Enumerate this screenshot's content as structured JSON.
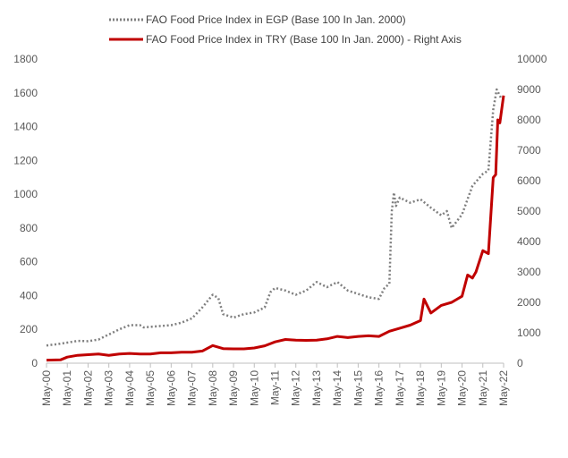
{
  "chart_data": {
    "type": "line",
    "title": "",
    "grid": false,
    "legend_position": "top",
    "x_ticks": [
      "May-00",
      "May-01",
      "May-02",
      "May-03",
      "May-04",
      "May-05",
      "May-06",
      "May-07",
      "May-08",
      "May-09",
      "May-10",
      "May-11",
      "May-12",
      "May-13",
      "May-14",
      "May-15",
      "May-16",
      "May-17",
      "May-18",
      "May-19",
      "May-20",
      "May-21",
      "May-22"
    ],
    "x_range": [
      2000.33,
      2022.33
    ],
    "y_left": {
      "min": 0,
      "max": 1800,
      "ticks": [
        0,
        200,
        400,
        600,
        800,
        1000,
        1200,
        1400,
        1600,
        1800
      ]
    },
    "y_right": {
      "min": 0,
      "max": 10000,
      "ticks": [
        0,
        1000,
        2000,
        3000,
        4000,
        5000,
        6000,
        7000,
        8000,
        9000,
        10000
      ]
    },
    "series": [
      {
        "name": "FAO Food Price Index in EGP (Base 100 In Jan. 2000)",
        "axis": "left",
        "color": "#7f7f7f",
        "style": "dotted",
        "points": [
          [
            2000.33,
            105
          ],
          [
            2000.83,
            112
          ],
          [
            2001.33,
            122
          ],
          [
            2001.83,
            132
          ],
          [
            2002.33,
            130
          ],
          [
            2002.83,
            140
          ],
          [
            2003.33,
            170
          ],
          [
            2003.83,
            200
          ],
          [
            2004.33,
            225
          ],
          [
            2004.83,
            225
          ],
          [
            2005.0,
            212
          ],
          [
            2005.33,
            215
          ],
          [
            2005.83,
            220
          ],
          [
            2006.33,
            225
          ],
          [
            2006.83,
            240
          ],
          [
            2007.33,
            265
          ],
          [
            2007.83,
            330
          ],
          [
            2008.33,
            405
          ],
          [
            2008.6,
            385
          ],
          [
            2008.83,
            290
          ],
          [
            2009.33,
            270
          ],
          [
            2009.83,
            290
          ],
          [
            2010.33,
            300
          ],
          [
            2010.83,
            330
          ],
          [
            2011.1,
            420
          ],
          [
            2011.33,
            445
          ],
          [
            2011.83,
            430
          ],
          [
            2012.33,
            405
          ],
          [
            2012.83,
            430
          ],
          [
            2013.33,
            480
          ],
          [
            2013.83,
            450
          ],
          [
            2014.33,
            480
          ],
          [
            2014.83,
            430
          ],
          [
            2015.33,
            410
          ],
          [
            2015.83,
            390
          ],
          [
            2016.33,
            380
          ],
          [
            2016.6,
            445
          ],
          [
            2016.83,
            470
          ],
          [
            2016.95,
            900
          ],
          [
            2017.05,
            1010
          ],
          [
            2017.15,
            930
          ],
          [
            2017.33,
            980
          ],
          [
            2017.83,
            950
          ],
          [
            2018.33,
            970
          ],
          [
            2018.83,
            920
          ],
          [
            2019.33,
            875
          ],
          [
            2019.6,
            900
          ],
          [
            2019.83,
            800
          ],
          [
            2020.33,
            880
          ],
          [
            2020.83,
            1050
          ],
          [
            2021.33,
            1120
          ],
          [
            2021.6,
            1140
          ],
          [
            2021.83,
            1500
          ],
          [
            2022.0,
            1620
          ],
          [
            2022.2,
            1570
          ]
        ]
      },
      {
        "name": "FAO Food Price Index in TRY (Base 100 In Jan. 2000) - Right Axis",
        "axis": "right",
        "color": "#c00000",
        "style": "solid",
        "points": [
          [
            2000.33,
            100
          ],
          [
            2001.0,
            110
          ],
          [
            2001.33,
            200
          ],
          [
            2001.83,
            260
          ],
          [
            2002.33,
            280
          ],
          [
            2002.83,
            300
          ],
          [
            2003.33,
            260
          ],
          [
            2003.83,
            300
          ],
          [
            2004.33,
            320
          ],
          [
            2004.83,
            300
          ],
          [
            2005.33,
            300
          ],
          [
            2005.83,
            340
          ],
          [
            2006.33,
            340
          ],
          [
            2006.83,
            360
          ],
          [
            2007.33,
            360
          ],
          [
            2007.83,
            400
          ],
          [
            2008.33,
            580
          ],
          [
            2008.83,
            480
          ],
          [
            2009.33,
            470
          ],
          [
            2009.83,
            470
          ],
          [
            2010.33,
            500
          ],
          [
            2010.83,
            570
          ],
          [
            2011.33,
            700
          ],
          [
            2011.83,
            780
          ],
          [
            2012.33,
            760
          ],
          [
            2012.83,
            750
          ],
          [
            2013.33,
            760
          ],
          [
            2013.83,
            800
          ],
          [
            2014.33,
            880
          ],
          [
            2014.83,
            840
          ],
          [
            2015.33,
            880
          ],
          [
            2015.83,
            900
          ],
          [
            2016.33,
            880
          ],
          [
            2016.83,
            1050
          ],
          [
            2017.33,
            1150
          ],
          [
            2017.83,
            1250
          ],
          [
            2018.33,
            1400
          ],
          [
            2018.5,
            2110
          ],
          [
            2018.83,
            1650
          ],
          [
            2019.33,
            1900
          ],
          [
            2019.83,
            2000
          ],
          [
            2020.33,
            2200
          ],
          [
            2020.6,
            2900
          ],
          [
            2020.83,
            2800
          ],
          [
            2021.0,
            3000
          ],
          [
            2021.33,
            3700
          ],
          [
            2021.6,
            3600
          ],
          [
            2021.83,
            6100
          ],
          [
            2021.95,
            6200
          ],
          [
            2022.05,
            8000
          ],
          [
            2022.15,
            7900
          ],
          [
            2022.33,
            8800
          ]
        ]
      }
    ]
  }
}
